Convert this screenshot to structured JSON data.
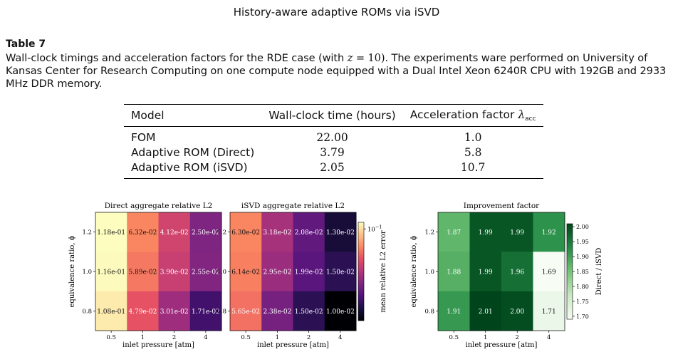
{
  "running_head": "History-aware adaptive ROMs via iSVD",
  "table_label": "Table 7",
  "caption": {
    "before_math": "Wall-clock timings and acceleration factors for the RDE case (with ",
    "math_var": "z",
    "math_rest": " = 10)",
    "after_math": ". The experiments ware performed on University of Kansas Center for Research Computing on one compute node equipped with a Dual Intel Xeon 6240R CPU with 192GB and 2933 MHz DDR memory."
  },
  "table": {
    "headers": {
      "model": "Model",
      "time": "Wall-clock time (hours)",
      "factor": "Acceleration factor",
      "factor_symbol": "λ",
      "factor_subscript": "acc"
    },
    "rows": [
      {
        "model": "FOM",
        "time": "22.00",
        "factor": "1.0"
      },
      {
        "model": "Adaptive ROM (Direct)",
        "time": "3.79",
        "factor": "5.8"
      },
      {
        "model": "Adaptive ROM (iSVD)",
        "time": "2.05",
        "factor": "10.7"
      }
    ]
  },
  "chart_data": [
    {
      "type": "heatmap",
      "title": "Direct aggregate relative L2",
      "xlabel": "inlet pressure [atm]",
      "ylabel": "equivalence ratio, ϕ",
      "x_categories": [
        "0.5",
        "1",
        "2",
        "4"
      ],
      "y_categories": [
        "1.2",
        "1.0",
        "0.8"
      ],
      "cell_labels": [
        [
          "1.18e-01",
          "6.32e-02",
          "4.12e-02",
          "2.50e-02"
        ],
        [
          "1.16e-01",
          "5.89e-02",
          "3.90e-02",
          "2.55e-02"
        ],
        [
          "1.08e-01",
          "4.79e-02",
          "3.01e-02",
          "1.71e-02"
        ]
      ],
      "values": [
        [
          0.118,
          0.0632,
          0.0412,
          0.025
        ],
        [
          0.116,
          0.0589,
          0.039,
          0.0255
        ],
        [
          0.108,
          0.0479,
          0.0301,
          0.0171
        ]
      ],
      "colormap": "magma",
      "scale": "log",
      "vmin": 0.01,
      "vmax": 0.118
    },
    {
      "type": "heatmap",
      "title": "iSVD aggregate relative L2",
      "xlabel": "inlet pressure [atm]",
      "x_categories": [
        "0.5",
        "1",
        "2",
        "4"
      ],
      "y_categories": [
        "1.2",
        "1.0",
        "0.8"
      ],
      "cell_labels": [
        [
          "6.30e-02",
          "3.18e-02",
          "2.08e-02",
          "1.30e-02"
        ],
        [
          "6.14e-02",
          "2.95e-02",
          "1.99e-02",
          "1.50e-02"
        ],
        [
          "5.65e-02",
          "2.38e-02",
          "1.50e-02",
          "1.00e-02"
        ]
      ],
      "values": [
        [
          0.063,
          0.0318,
          0.0208,
          0.013
        ],
        [
          0.0614,
          0.0295,
          0.0199,
          0.015
        ],
        [
          0.0565,
          0.0238,
          0.015,
          0.01
        ]
      ],
      "colormap": "magma",
      "scale": "log",
      "vmin": 0.01,
      "vmax": 0.118,
      "colorbar": {
        "label": "mean relative L2 error",
        "tick_labels": [
          {
            "base": "10",
            "exp": "−1"
          }
        ],
        "tick_values": [
          0.1
        ]
      }
    },
    {
      "type": "heatmap",
      "title": "Improvement factor",
      "xlabel": "inlet pressure [atm]",
      "ylabel": "equivalence ratio, ϕ",
      "x_categories": [
        "0.5",
        "1",
        "2",
        "4"
      ],
      "y_categories": [
        "1.2",
        "1.0",
        "0.8"
      ],
      "cell_labels": [
        [
          "1.87",
          "1.99",
          "1.99",
          "1.92"
        ],
        [
          "1.88",
          "1.99",
          "1.96",
          "1.69"
        ],
        [
          "1.91",
          "2.01",
          "2.00",
          "1.71"
        ]
      ],
      "values": [
        [
          1.87,
          1.99,
          1.99,
          1.92
        ],
        [
          1.88,
          1.99,
          1.96,
          1.69
        ],
        [
          1.91,
          2.01,
          2.0,
          1.71
        ]
      ],
      "colormap": "greens",
      "vmin": 1.69,
      "vmax": 2.01,
      "colorbar": {
        "label": "Direct / iSVD",
        "ticks": [
          "1.70",
          "1.75",
          "1.80",
          "1.85",
          "1.90",
          "1.95",
          "2.00"
        ],
        "tick_values": [
          1.7,
          1.75,
          1.8,
          1.85,
          1.9,
          1.95,
          2.0
        ]
      }
    }
  ]
}
